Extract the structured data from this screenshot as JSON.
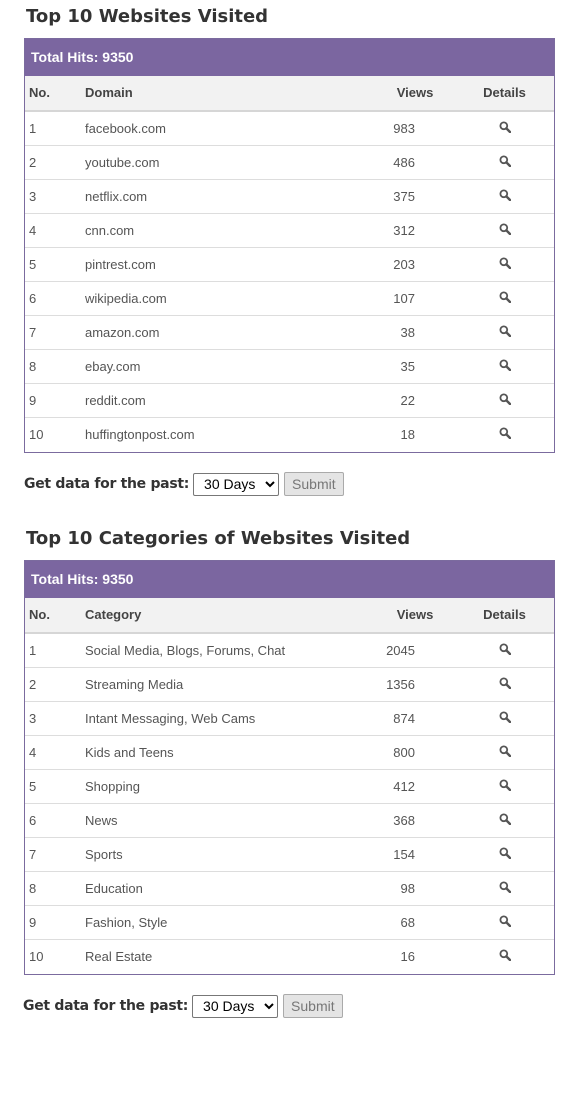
{
  "websites": {
    "title": "Top 10 Websites Visited",
    "total_hits": "Total Hits: 9350",
    "headers": {
      "no": "No.",
      "name": "Domain",
      "views": "Views",
      "details": "Details"
    },
    "rows": [
      {
        "no": "1",
        "name": "facebook.com",
        "views": "983"
      },
      {
        "no": "2",
        "name": "youtube.com",
        "views": "486"
      },
      {
        "no": "3",
        "name": "netflix.com",
        "views": "375"
      },
      {
        "no": "4",
        "name": "cnn.com",
        "views": "312"
      },
      {
        "no": "5",
        "name": "pintrest.com",
        "views": "203"
      },
      {
        "no": "6",
        "name": "wikipedia.com",
        "views": "107"
      },
      {
        "no": "7",
        "name": "amazon.com",
        "views": "38"
      },
      {
        "no": "8",
        "name": "ebay.com",
        "views": "35"
      },
      {
        "no": "9",
        "name": "reddit.com",
        "views": "22"
      },
      {
        "no": "10",
        "name": "huffingtonpost.com",
        "views": "18"
      }
    ],
    "form": {
      "label": "Get data for the past:",
      "selected": "30 Days",
      "submit": "Submit"
    }
  },
  "categories": {
    "title": "Top 10 Categories of Websites Visited",
    "total_hits": "Total Hits: 9350",
    "headers": {
      "no": "No.",
      "name": "Category",
      "views": "Views",
      "details": "Details"
    },
    "rows": [
      {
        "no": "1",
        "name": "Social Media, Blogs, Forums, Chat",
        "views": "2045"
      },
      {
        "no": "2",
        "name": "Streaming Media",
        "views": "1356"
      },
      {
        "no": "3",
        "name": "Intant Messaging, Web Cams",
        "views": "874"
      },
      {
        "no": "4",
        "name": "Kids and Teens",
        "views": "800"
      },
      {
        "no": "5",
        "name": "Shopping",
        "views": "412"
      },
      {
        "no": "6",
        "name": "News",
        "views": "368"
      },
      {
        "no": "7",
        "name": "Sports",
        "views": "154"
      },
      {
        "no": "8",
        "name": "Education",
        "views": "98"
      },
      {
        "no": "9",
        "name": "Fashion, Style",
        "views": "68"
      },
      {
        "no": "10",
        "name": "Real Estate",
        "views": "16"
      }
    ],
    "form": {
      "label": "Get data for the past:",
      "selected": "30 Days",
      "submit": "Submit"
    }
  },
  "colors": {
    "header_bar": "#7b66a0",
    "border": "#7b6b9e",
    "icon": "#555555"
  },
  "icons": {
    "details": "magnifier-icon"
  }
}
